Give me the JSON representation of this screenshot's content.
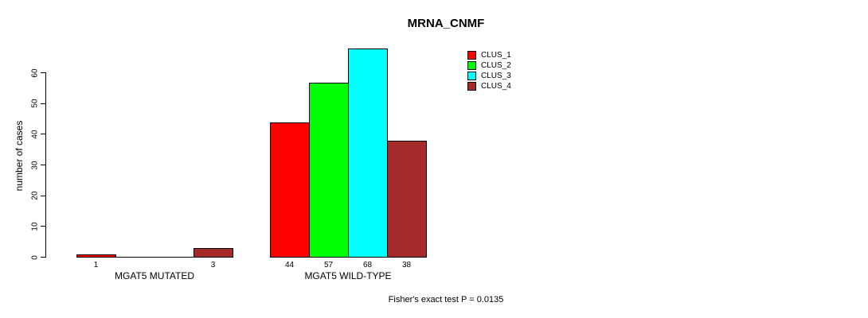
{
  "chart_data": {
    "type": "bar",
    "title": "MRNA_CNMF",
    "ylabel": "number of cases",
    "xlabel": "",
    "categories": [
      "MGAT5 MUTATED",
      "MGAT5 WILD-TYPE"
    ],
    "series": [
      {
        "name": "CLUS_1",
        "color": "#FF0000",
        "values": [
          1,
          44
        ]
      },
      {
        "name": "CLUS_2",
        "color": "#00FF00",
        "values": [
          0,
          57
        ]
      },
      {
        "name": "CLUS_3",
        "color": "#00FFFF",
        "values": [
          0,
          68
        ]
      },
      {
        "name": "CLUS_4",
        "color": "#A52A2A",
        "values": [
          3,
          38
        ]
      }
    ],
    "bar_value_labels_shown": true,
    "zero_value_labels_hidden": true,
    "yticks": [
      0,
      10,
      20,
      30,
      40,
      50,
      60
    ],
    "ylim": [
      0,
      68
    ],
    "grid": false,
    "legend_position": "top-right",
    "footnote": "Fisher's exact test P = 0.0135",
    "background_color": "#FFFFFF",
    "axis_color": "#000000"
  }
}
